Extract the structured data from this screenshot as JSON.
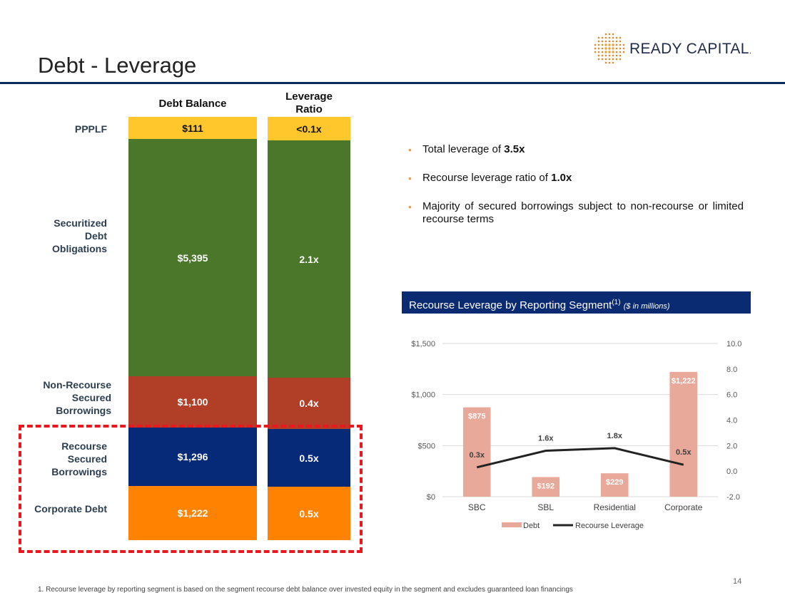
{
  "page": {
    "title": "Debt - Leverage",
    "page_number": "14",
    "footnote": "1. Recourse leverage by reporting segment is based on the segment recourse debt balance over invested equity in the segment and excludes guaranteed loan financings"
  },
  "logo": {
    "text": "READY CAPITAL",
    "registered": "."
  },
  "stack": {
    "col1_header": "Debt Balance",
    "col2_header_line1": "Leverage",
    "col2_header_line2": "Ratio",
    "rows": [
      {
        "label_lines": [
          "PPPLF"
        ],
        "balance": "$111",
        "ratio": "<0.1x",
        "color": "#ffc72c"
      },
      {
        "label_lines": [
          "Securitized",
          "Debt",
          "Obligations"
        ],
        "balance": "$5,395",
        "ratio": "2.1x",
        "color": "#4b772a"
      },
      {
        "label_lines": [
          "Non-Recourse",
          "Secured",
          "Borrowings"
        ],
        "balance": "$1,100",
        "ratio": "0.4x",
        "color": "#b13e27"
      },
      {
        "label_lines": [
          "Recourse",
          "Secured",
          "Borrowings"
        ],
        "balance": "$1,296",
        "ratio": "0.5x",
        "color": "#062a78"
      },
      {
        "label_lines": [
          "Corporate Debt"
        ],
        "balance": "$1,222",
        "ratio": "0.5x",
        "color": "#ff8200"
      }
    ]
  },
  "bullets": [
    {
      "text": "Total leverage of ",
      "bold": "3.5x"
    },
    {
      "text": "Recourse leverage ratio of ",
      "bold": "1.0x"
    },
    {
      "text": "Majority of secured borrowings subject to non-recourse or limited recourse terms",
      "bold": ""
    }
  ],
  "chart_banner": {
    "title": "Recourse Leverage by Reporting Segment",
    "sup": "(1)",
    "units": "($ in millions)"
  },
  "chart_data": {
    "type": "bar",
    "categories": [
      "SBC",
      "SBL",
      "Residential",
      "Corporate"
    ],
    "series": [
      {
        "name": "Debt",
        "type": "bar",
        "axis": "left",
        "values": [
          875,
          192,
          229,
          1222
        ],
        "labels": [
          "$875",
          "$192",
          "$229",
          "$1,222"
        ],
        "color": "#e8a99a"
      },
      {
        "name": "Recourse Leverage",
        "type": "line",
        "axis": "right",
        "values": [
          0.3,
          1.6,
          1.8,
          0.5
        ],
        "labels": [
          "0.3x",
          "1.6x",
          "1.8x",
          "0.5x"
        ],
        "color": "#222222"
      }
    ],
    "y_left": {
      "ylim": [
        0,
        1500
      ],
      "ticks": [
        0,
        500,
        1000,
        1500
      ],
      "tick_labels": [
        "$0",
        "$500",
        "$1,000",
        "$1,500"
      ]
    },
    "y_right": {
      "ylim": [
        -2,
        10
      ],
      "ticks": [
        -2,
        0,
        2,
        4,
        6,
        8,
        10
      ],
      "tick_labels": [
        "-2.0",
        "0.0",
        "2.0",
        "4.0",
        "6.0",
        "8.0",
        "10.0"
      ]
    },
    "grid": true,
    "legend_position": "bottom"
  }
}
